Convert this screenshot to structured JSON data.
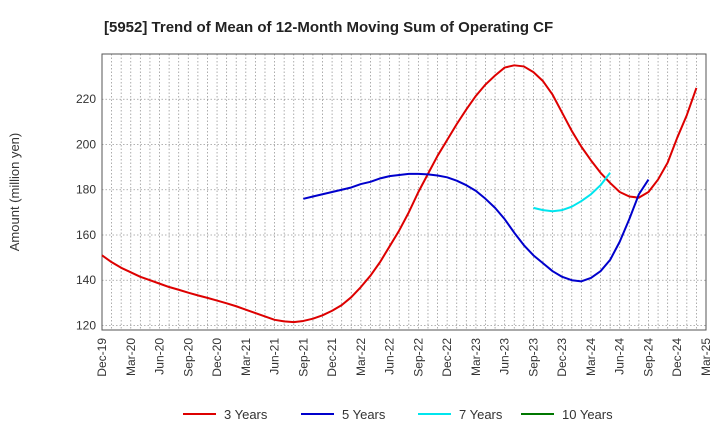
{
  "chart_data": {
    "type": "line",
    "title": "[5952]  Trend of Mean of 12-Month Moving Sum of Operating CF",
    "ylabel": "Amount (million yen)",
    "xlabel": "",
    "ylim": [
      118,
      240
    ],
    "yticks": [
      120,
      140,
      160,
      180,
      200,
      220
    ],
    "grid": true,
    "legend_position": "bottom",
    "x_start": "Dec-19",
    "x_end": "Mar-25",
    "x_tick_labels": [
      "Dec-19",
      "Mar-20",
      "Jun-20",
      "Sep-20",
      "Dec-20",
      "Mar-21",
      "Jun-21",
      "Sep-21",
      "Dec-21",
      "Mar-22",
      "Jun-22",
      "Sep-22",
      "Dec-22",
      "Mar-23",
      "Jun-23",
      "Sep-23",
      "Dec-23",
      "Mar-24",
      "Jun-24",
      "Sep-24",
      "Dec-24",
      "Mar-25"
    ],
    "series": [
      {
        "name": "3 Years",
        "color": "#dd0000",
        "start": "Dec-19",
        "values": [
          151,
          148,
          145.5,
          143.5,
          141.5,
          140,
          138.5,
          137,
          135.8,
          134.5,
          133.3,
          132.2,
          131,
          129.8,
          128.5,
          127,
          125.5,
          124,
          122.5,
          121.8,
          121.5,
          122,
          123,
          124.5,
          126.5,
          129,
          132.5,
          137,
          142,
          148,
          155,
          162,
          170,
          179,
          187,
          195,
          202,
          209,
          215.5,
          221.5,
          226.5,
          230.5,
          234,
          235,
          234.5,
          232,
          228,
          222,
          214,
          206,
          199,
          193,
          187.5,
          183,
          179,
          177,
          176.5,
          179,
          184.5,
          192,
          203,
          213,
          225
        ]
      },
      {
        "name": "5 Years",
        "color": "#0000cc",
        "start": "Sep-21",
        "values": [
          176,
          177,
          178,
          179,
          180,
          181,
          182.5,
          183.5,
          185,
          186,
          186.5,
          187,
          187,
          186.8,
          186.3,
          185.5,
          184,
          182,
          179.5,
          176,
          172,
          167,
          161,
          155.5,
          151,
          147.5,
          144,
          141.5,
          140,
          139.5,
          141,
          144,
          149,
          157,
          167,
          178,
          184.5
        ]
      },
      {
        "name": "7 Years",
        "color": "#00e5ee",
        "start": "Sep-23",
        "values": [
          172,
          171,
          170.5,
          171,
          172.5,
          175,
          178,
          182,
          187.5
        ]
      },
      {
        "name": "10 Years",
        "color": "#007700",
        "start": "Sep-23",
        "values": []
      }
    ]
  }
}
